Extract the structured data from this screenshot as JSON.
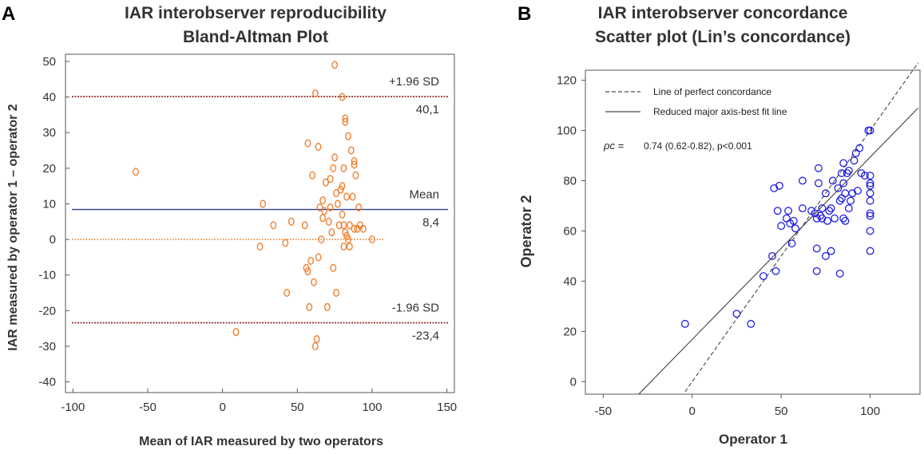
{
  "panels": {
    "a_letter": "A",
    "b_letter": "B"
  },
  "chart_data": [
    {
      "type": "scatter",
      "title": "IAR interobserver reproducibility",
      "subtitle": "Bland-Altman Plot",
      "xlabel": "Mean of IAR measured by two operators",
      "ylabel": "IAR  measured by operator 1 – operator 2",
      "xlim": [
        -105,
        155
      ],
      "ylim": [
        -43,
        52
      ],
      "xticks": [
        -100,
        -50,
        0,
        50,
        100,
        150
      ],
      "yticks": [
        -40,
        -30,
        -20,
        -10,
        0,
        10,
        20,
        30,
        40,
        50
      ],
      "grid": false,
      "reference_lines": [
        {
          "name": "upper-loa",
          "value": 40.1,
          "label_top": "+1.96 SD",
          "label_bottom": "40,1",
          "color": "#8b1a1a",
          "style": "dotted"
        },
        {
          "name": "mean",
          "value": 8.4,
          "label_top": "Mean",
          "label_bottom": "8,4",
          "color": "#2e3c8c",
          "style": "solid"
        },
        {
          "name": "lower-loa",
          "value": -23.4,
          "label_top": "-1.96 SD",
          "label_bottom": "-23,4",
          "color": "#8b1a1a",
          "style": "dotted"
        },
        {
          "name": "zero",
          "value": 0,
          "color": "#f08030",
          "style": "dotted"
        }
      ],
      "point_color": "#f08030",
      "points": [
        [
          -58,
          19
        ],
        [
          9,
          -26
        ],
        [
          27,
          10
        ],
        [
          25,
          -2
        ],
        [
          34,
          4
        ],
        [
          42,
          -1
        ],
        [
          43,
          -15
        ],
        [
          46,
          5
        ],
        [
          55,
          4
        ],
        [
          56,
          -8
        ],
        [
          57,
          27
        ],
        [
          57,
          -9
        ],
        [
          58,
          -19
        ],
        [
          59,
          -6
        ],
        [
          60,
          18
        ],
        [
          61,
          -12
        ],
        [
          62,
          -30
        ],
        [
          62,
          41
        ],
        [
          63,
          -28
        ],
        [
          64,
          26
        ],
        [
          64,
          -5
        ],
        [
          65,
          9
        ],
        [
          66,
          0
        ],
        [
          67,
          6
        ],
        [
          67,
          11
        ],
        [
          68,
          8
        ],
        [
          69,
          16
        ],
        [
          70,
          -19
        ],
        [
          71,
          5
        ],
        [
          72,
          17
        ],
        [
          72,
          9
        ],
        [
          73,
          2
        ],
        [
          74,
          20
        ],
        [
          74,
          -8
        ],
        [
          75,
          23
        ],
        [
          75,
          49
        ],
        [
          76,
          13
        ],
        [
          76,
          -15
        ],
        [
          77,
          10
        ],
        [
          78,
          4
        ],
        [
          79,
          14
        ],
        [
          80,
          40
        ],
        [
          80,
          15
        ],
        [
          80,
          7
        ],
        [
          81,
          4
        ],
        [
          81,
          -2
        ],
        [
          81,
          20
        ],
        [
          82,
          34
        ],
        [
          82,
          33
        ],
        [
          82,
          2
        ],
        [
          83,
          1
        ],
        [
          83,
          12
        ],
        [
          84,
          0
        ],
        [
          84,
          29
        ],
        [
          85,
          4
        ],
        [
          85,
          -2
        ],
        [
          86,
          25
        ],
        [
          87,
          12
        ],
        [
          88,
          21
        ],
        [
          88,
          22
        ],
        [
          88,
          3
        ],
        [
          89,
          18
        ],
        [
          90,
          3
        ],
        [
          91,
          9
        ],
        [
          92,
          4
        ],
        [
          94,
          3
        ],
        [
          100,
          0
        ]
      ]
    },
    {
      "type": "scatter",
      "title": "IAR interobserver concordance",
      "subtitle": "Scatter plot (Lin’s concordance)",
      "xlabel": "Operator 1",
      "ylabel": "Operator 2",
      "xlim": [
        -60,
        128
      ],
      "ylim": [
        -5,
        124
      ],
      "xticks": [
        -50,
        0,
        50,
        100
      ],
      "yticks": [
        0,
        20,
        40,
        60,
        80,
        100,
        120
      ],
      "grid": false,
      "legend": {
        "placement": "top-left",
        "items": [
          {
            "label": "Line of perfect concordance",
            "style": "dashed"
          },
          {
            "label": "Reduced major axis-best fit line",
            "style": "solid"
          }
        ]
      },
      "stat_symbol": "ρc =",
      "stat_text": "0.74 (0.62-0.82), p<0.001",
      "lines": [
        {
          "name": "perfect-concordance",
          "style": "dashed",
          "x": [
            -4,
            127
          ],
          "y": [
            -4,
            127
          ]
        },
        {
          "name": "rma-fit",
          "style": "solid",
          "x": [
            -30,
            127
          ],
          "y": [
            -5,
            109
          ]
        }
      ],
      "point_color": "#2020e0",
      "points": [
        [
          -4,
          23
        ],
        [
          25,
          27
        ],
        [
          33,
          23
        ],
        [
          40,
          42
        ],
        [
          45,
          50
        ],
        [
          46,
          77
        ],
        [
          47,
          44
        ],
        [
          48,
          68
        ],
        [
          49,
          78
        ],
        [
          50,
          62
        ],
        [
          53,
          65
        ],
        [
          54,
          68
        ],
        [
          55,
          63
        ],
        [
          56,
          55
        ],
        [
          57,
          64
        ],
        [
          58,
          61
        ],
        [
          62,
          69
        ],
        [
          62,
          80
        ],
        [
          67,
          68
        ],
        [
          69,
          67
        ],
        [
          70,
          65
        ],
        [
          70,
          53
        ],
        [
          70,
          44
        ],
        [
          71,
          85
        ],
        [
          71,
          79
        ],
        [
          72,
          66
        ],
        [
          73,
          69
        ],
        [
          73,
          65
        ],
        [
          75,
          75
        ],
        [
          75,
          50
        ],
        [
          76,
          64
        ],
        [
          77,
          68
        ],
        [
          78,
          52
        ],
        [
          78,
          69
        ],
        [
          79,
          80
        ],
        [
          80,
          65
        ],
        [
          82,
          77
        ],
        [
          83,
          72
        ],
        [
          83,
          43
        ],
        [
          84,
          83
        ],
        [
          84,
          73
        ],
        [
          85,
          87
        ],
        [
          85,
          65
        ],
        [
          85,
          79
        ],
        [
          86,
          64
        ],
        [
          86,
          75
        ],
        [
          87,
          83
        ],
        [
          88,
          84
        ],
        [
          88,
          69
        ],
        [
          89,
          72
        ],
        [
          90,
          75
        ],
        [
          91,
          88
        ],
        [
          92,
          91
        ],
        [
          93,
          76
        ],
        [
          94,
          93
        ],
        [
          95,
          83
        ],
        [
          97,
          82
        ],
        [
          99,
          100
        ],
        [
          100,
          100
        ],
        [
          100,
          82
        ],
        [
          100,
          79
        ],
        [
          100,
          78
        ],
        [
          100,
          75
        ],
        [
          100,
          72
        ],
        [
          100,
          67
        ],
        [
          100,
          66
        ],
        [
          100,
          60
        ],
        [
          100,
          52
        ]
      ]
    }
  ]
}
